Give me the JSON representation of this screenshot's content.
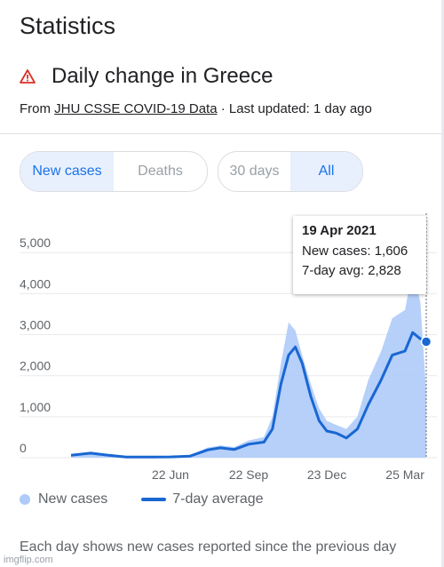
{
  "page_title": "Statistics",
  "section_title": "Daily change in Greece",
  "source": {
    "prefix": "From ",
    "link": "JHU CSSE COVID-19 Data",
    "suffix": " · Last updated: 1 day ago"
  },
  "toggles": {
    "metric": [
      {
        "label": "New cases",
        "active": true
      },
      {
        "label": "Deaths",
        "active": false
      }
    ],
    "range": [
      {
        "label": "30 days",
        "active": false
      },
      {
        "label": "All",
        "active": true
      }
    ]
  },
  "tooltip": {
    "date": "19 Apr 2021",
    "new_cases": "New cases: 1,606",
    "avg": "7-day avg: 2,828"
  },
  "legend": {
    "bars": "New cases",
    "line": "7-day average"
  },
  "footnote": "Each day shows new cases reported since the previous day",
  "watermark": "imgflip.com",
  "colors": {
    "bars": "#aecbfa",
    "line": "#1967d2",
    "active_bg": "#e8f0fe",
    "active_text": "#1a73e8",
    "warning": "#d93025"
  },
  "icons": {
    "warning": "warning-triangle-icon"
  },
  "chart_data": {
    "type": "area",
    "y_ticks": [
      "0",
      "1,000",
      "2,000",
      "3,000",
      "4,000",
      "5,000"
    ],
    "ylim": [
      0,
      5200
    ],
    "x_ticks": [
      {
        "label": "22 Jun",
        "x": "2020-06-22"
      },
      {
        "label": "22 Sep",
        "x": "2020-09-22"
      },
      {
        "label": "23 Dec",
        "x": "2020-12-23"
      },
      {
        "label": "25 Mar",
        "x": "2021-03-25"
      }
    ],
    "xlim": [
      "2020-02-26",
      "2021-04-19"
    ],
    "series": [
      {
        "name": "7-day average",
        "points": [
          [
            "2020-02-26",
            60
          ],
          [
            "2020-03-20",
            110
          ],
          [
            "2020-04-10",
            60
          ],
          [
            "2020-05-01",
            15
          ],
          [
            "2020-06-01",
            15
          ],
          [
            "2020-06-22",
            20
          ],
          [
            "2020-07-15",
            40
          ],
          [
            "2020-08-05",
            190
          ],
          [
            "2020-08-20",
            240
          ],
          [
            "2020-09-05",
            200
          ],
          [
            "2020-09-22",
            330
          ],
          [
            "2020-10-10",
            380
          ],
          [
            "2020-10-20",
            700
          ],
          [
            "2020-10-30",
            1800
          ],
          [
            "2020-11-08",
            2500
          ],
          [
            "2020-11-16",
            2700
          ],
          [
            "2020-11-24",
            2300
          ],
          [
            "2020-12-04",
            1500
          ],
          [
            "2020-12-14",
            900
          ],
          [
            "2020-12-23",
            650
          ],
          [
            "2021-01-03",
            600
          ],
          [
            "2021-01-15",
            480
          ],
          [
            "2021-01-28",
            700
          ],
          [
            "2021-02-10",
            1300
          ],
          [
            "2021-02-25",
            1900
          ],
          [
            "2021-03-10",
            2500
          ],
          [
            "2021-03-25",
            2600
          ],
          [
            "2021-04-03",
            3050
          ],
          [
            "2021-04-12",
            2900
          ],
          [
            "2021-04-19",
            2828
          ]
        ]
      },
      {
        "name": "New cases",
        "points": [
          [
            "2020-02-26",
            40
          ],
          [
            "2020-03-20",
            150
          ],
          [
            "2020-04-10",
            80
          ],
          [
            "2020-05-01",
            20
          ],
          [
            "2020-06-01",
            20
          ],
          [
            "2020-06-22",
            30
          ],
          [
            "2020-07-15",
            60
          ],
          [
            "2020-08-05",
            250
          ],
          [
            "2020-08-20",
            300
          ],
          [
            "2020-09-05",
            260
          ],
          [
            "2020-09-22",
            420
          ],
          [
            "2020-10-10",
            500
          ],
          [
            "2020-10-20",
            1000
          ],
          [
            "2020-10-30",
            2300
          ],
          [
            "2020-11-08",
            3300
          ],
          [
            "2020-11-16",
            3100
          ],
          [
            "2020-11-24",
            2500
          ],
          [
            "2020-12-04",
            1800
          ],
          [
            "2020-12-14",
            1200
          ],
          [
            "2020-12-23",
            900
          ],
          [
            "2021-01-03",
            800
          ],
          [
            "2021-01-15",
            700
          ],
          [
            "2021-01-28",
            1000
          ],
          [
            "2021-02-10",
            1900
          ],
          [
            "2021-02-25",
            2600
          ],
          [
            "2021-03-10",
            3400
          ],
          [
            "2021-03-25",
            3600
          ],
          [
            "2021-04-03",
            4600
          ],
          [
            "2021-04-12",
            3800
          ],
          [
            "2021-04-19",
            1606
          ]
        ]
      }
    ],
    "selected_point": {
      "x": "2021-04-19",
      "y": 2828
    },
    "grid": true
  }
}
